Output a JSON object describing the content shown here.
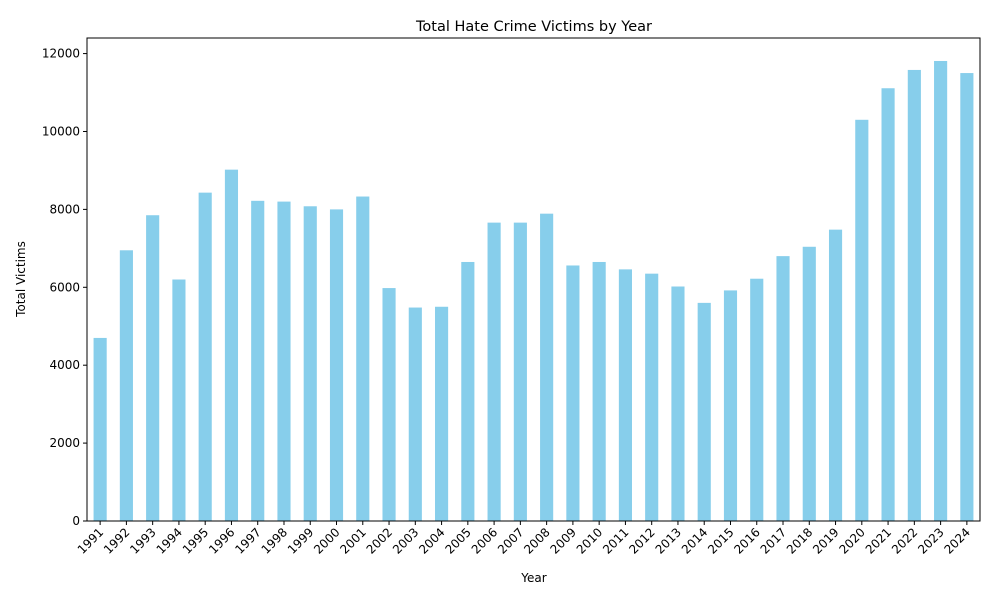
{
  "chart_data": {
    "type": "bar",
    "title": "Total Hate Crime Victims by Year",
    "xlabel": "Year",
    "ylabel": "Total Victims",
    "ylim": [
      0,
      12400
    ],
    "yticks": [
      0,
      2000,
      4000,
      6000,
      8000,
      10000,
      12000
    ],
    "grid": false,
    "legend": "none",
    "color": "#87ceeb",
    "categories": [
      "1991",
      "1992",
      "1993",
      "1994",
      "1995",
      "1996",
      "1997",
      "1998",
      "1999",
      "2000",
      "2001",
      "2002",
      "2003",
      "2004",
      "2005",
      "2006",
      "2007",
      "2008",
      "2009",
      "2010",
      "2011",
      "2012",
      "2013",
      "2014",
      "2015",
      "2016",
      "2017",
      "2018",
      "2019",
      "2020",
      "2021",
      "2022",
      "2023",
      "2024"
    ],
    "values": [
      4700,
      6950,
      7850,
      6200,
      8430,
      9020,
      8220,
      8200,
      8080,
      8000,
      8330,
      5980,
      5480,
      5500,
      6650,
      7660,
      7660,
      7890,
      6560,
      6650,
      6460,
      6350,
      6020,
      5600,
      5920,
      6220,
      6800,
      7040,
      7480,
      10300,
      11110,
      11580,
      11810,
      11500
    ]
  }
}
